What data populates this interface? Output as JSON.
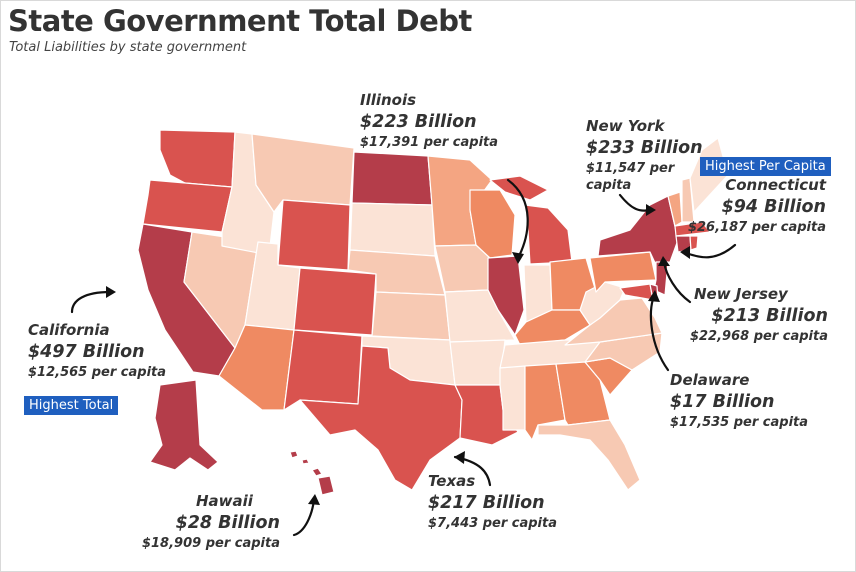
{
  "header": {
    "title": "State Government Total Debt",
    "subtitle": "Total Liabilities by state government"
  },
  "map": {
    "legend_scale": {
      "low_color": "#fbe3d6",
      "high_color": "#a83a48",
      "note": ""
    },
    "state_colors": {
      "WA": "#d9534f",
      "OR": "#d9534f",
      "CA": "#b43d4a",
      "NV": "#f7c9b3",
      "ID": "#fbe3d6",
      "MT": "#f7c9b3",
      "WY": "#d9534f",
      "UT": "#fbe3d6",
      "AZ": "#ef8a62",
      "CO": "#d9534f",
      "NM": "#d9534f",
      "ND": "#b43d4a",
      "SD": "#fbe3d6",
      "NE": "#f7c9b3",
      "KS": "#f7c9b3",
      "OK": "#fbe3d6",
      "TX": "#d9534f",
      "MN": "#f4a582",
      "IA": "#f7c9b3",
      "MO": "#fbe3d6",
      "AR": "#fbe3d6",
      "LA": "#d9534f",
      "WI": "#ef8a62",
      "IL": "#b43d4a",
      "MI": "#d9534f",
      "IN": "#fbe3d6",
      "OH": "#ef8a62",
      "KY": "#ef8a62",
      "TN": "#fbe3d6",
      "MS": "#fbe3d6",
      "AL": "#ef8a62",
      "GA": "#ef8a62",
      "FL": "#f7c9b3",
      "SC": "#ef8a62",
      "NC": "#f7c9b3",
      "VA": "#f7c9b3",
      "WV": "#fbe3d6",
      "PA": "#ef8a62",
      "NY": "#b43d4a",
      "NJ": "#b43d4a",
      "MD": "#d9534f",
      "DE": "#b43d4a",
      "CT": "#b43d4a",
      "MA": "#d9534f",
      "RI": "#d9534f",
      "VT": "#f4a582",
      "NH": "#f7c9b3",
      "ME": "#fbe3d6",
      "AK": "#b43d4a",
      "HI": "#b43d4a"
    }
  },
  "callouts": {
    "illinois": {
      "name": "Illinois",
      "amount": "$223 Billion",
      "per_capita": "$17,391 per capita"
    },
    "new_york": {
      "name": "New York",
      "amount": "$233 Billion",
      "per_capita_line1": "$11,547 per",
      "per_capita_line2": "capita"
    },
    "connecticut": {
      "name": "Connecticut",
      "amount": "$94 Billion",
      "per_capita": "$26,187 per capita"
    },
    "new_jersey": {
      "name": "New Jersey",
      "amount": "$213 Billion",
      "per_capita": "$22,968 per capita"
    },
    "delaware": {
      "name": "Delaware",
      "amount": "$17 Billion",
      "per_capita": "$17,535 per capita"
    },
    "california": {
      "name": "California",
      "amount": "$497 Billion",
      "per_capita": "$12,565 per capita"
    },
    "texas": {
      "name": "Texas",
      "amount": "$217 Billion",
      "per_capita": "$7,443 per capita"
    },
    "hawaii": {
      "name": "Hawaii",
      "amount": "$28 Billion",
      "per_capita": "$18,909 per capita"
    }
  },
  "badges": {
    "highest_per_capita": "Highest Per Capita",
    "highest_total": "Highest Total"
  }
}
